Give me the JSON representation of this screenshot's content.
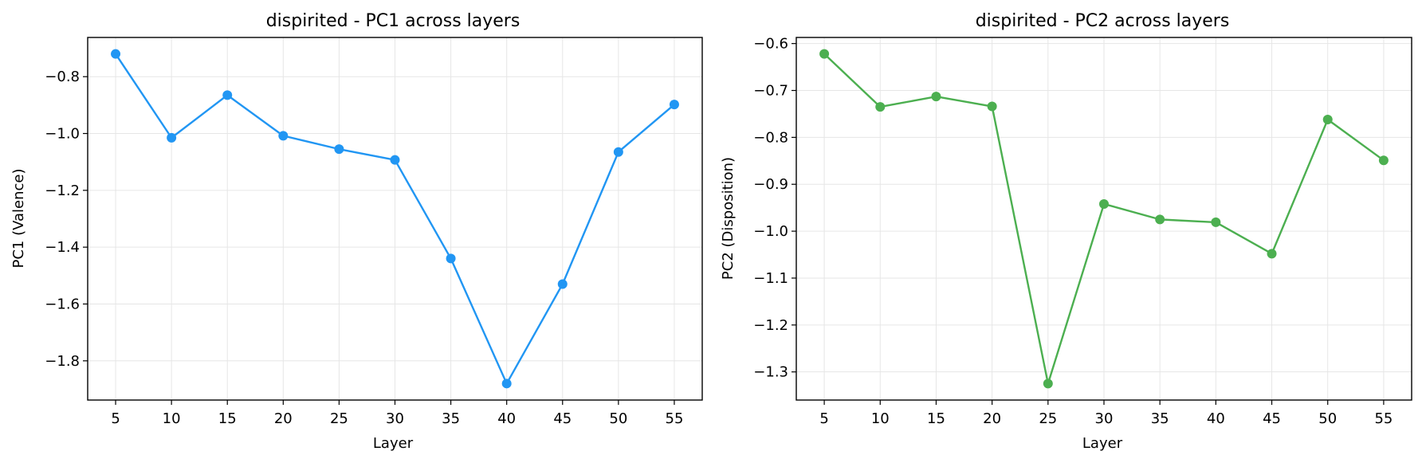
{
  "chart_data": [
    {
      "type": "line",
      "title": "dispirited - PC1 across layers",
      "xlabel": "Layer",
      "ylabel": "PC1 (Valence)",
      "color": "#2196F3",
      "x": [
        5,
        10,
        15,
        20,
        25,
        30,
        35,
        40,
        45,
        50,
        55
      ],
      "values": [
        -0.72,
        -1.015,
        -0.865,
        -1.008,
        -1.055,
        -1.093,
        -1.44,
        -1.88,
        -1.53,
        -1.065,
        -0.898
      ],
      "xticks": [
        "5",
        "10",
        "15",
        "20",
        "25",
        "30",
        "35",
        "40",
        "45",
        "50",
        "55"
      ],
      "yticks": [
        -0.8,
        -1.0,
        -1.2,
        -1.4,
        -1.6,
        -1.8
      ],
      "ytick_labels": [
        "−0.8",
        "−1.0",
        "−1.2",
        "−1.4",
        "−1.6",
        "−1.8"
      ],
      "xlim": [
        2.5,
        57.5
      ],
      "ylim": [
        -1.938,
        -0.662
      ],
      "grid": true,
      "marker": "circle"
    },
    {
      "type": "line",
      "title": "dispirited - PC2 across layers",
      "xlabel": "Layer",
      "ylabel": "PC2 (Disposition)",
      "color": "#4CAF50",
      "x": [
        5,
        10,
        15,
        20,
        25,
        30,
        35,
        40,
        45,
        50,
        55
      ],
      "values": [
        -0.622,
        -0.735,
        -0.713,
        -0.734,
        -1.325,
        -0.942,
        -0.975,
        -0.981,
        -1.048,
        -0.762,
        -0.849
      ],
      "xticks": [
        "5",
        "10",
        "15",
        "20",
        "25",
        "30",
        "35",
        "40",
        "45",
        "50",
        "55"
      ],
      "yticks": [
        -0.6,
        -0.7,
        -0.8,
        -0.9,
        -1.0,
        -1.1,
        -1.2,
        -1.3
      ],
      "ytick_labels": [
        "−0.6",
        "−0.7",
        "−0.8",
        "−0.9",
        "−1.0",
        "−1.1",
        "−1.2",
        "−1.3"
      ],
      "xlim": [
        2.5,
        57.5
      ],
      "ylim": [
        -1.36,
        -0.587
      ],
      "grid": true,
      "marker": "circle"
    }
  ]
}
